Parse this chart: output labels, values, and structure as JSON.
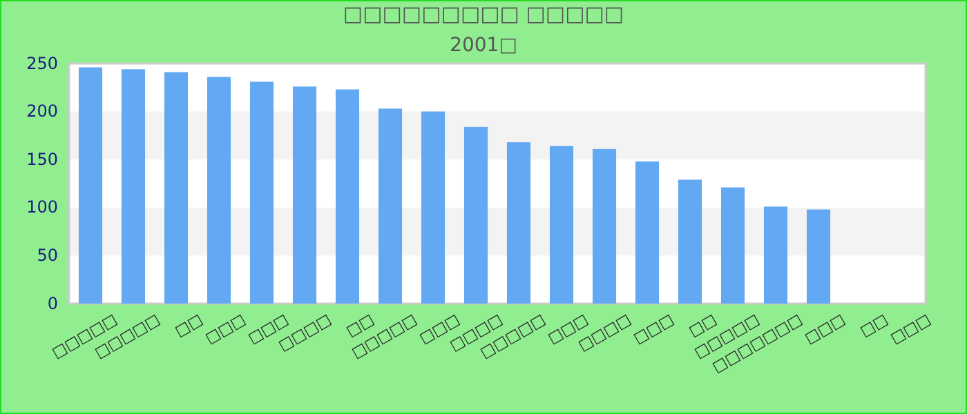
{
  "chart_data": {
    "type": "bar",
    "title": "□□□□□□□□□ □□□□□",
    "subtitle": "2001□",
    "categories": [
      "□□□□□",
      "□□□□□",
      "□□",
      "□□□",
      "□□□",
      "□□□□",
      "□□",
      "□□□□□",
      "□□□",
      "□□□□",
      "□□□□□",
      "□□□",
      "□□□□",
      "□□□",
      "□□",
      "□□□□□",
      "□□□□□□□",
      "□□□",
      "□□",
      "□□□"
    ],
    "values": [
      246,
      244,
      241,
      236,
      231,
      226,
      223,
      203,
      200,
      184,
      168,
      164,
      161,
      148,
      129,
      121,
      101,
      98,
      null,
      null
    ],
    "color": "#62a8f3",
    "ylim": [
      0,
      250
    ],
    "yticks": [
      0,
      50,
      100,
      150,
      200,
      250
    ],
    "bands": [
      {
        "axis": "y",
        "from": 50,
        "to": 100,
        "color": "#f3f3f3"
      },
      {
        "axis": "y",
        "from": 150,
        "to": 200,
        "color": "#f3f3f3"
      }
    ]
  }
}
